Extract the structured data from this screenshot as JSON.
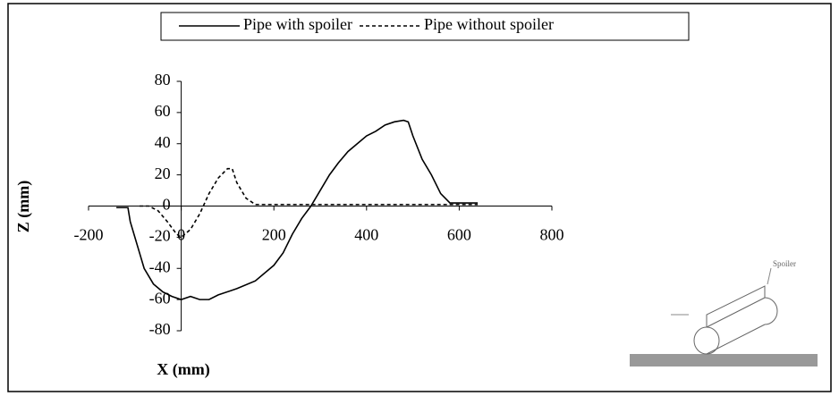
{
  "chart_data": {
    "type": "line",
    "xlabel": "X (mm)",
    "ylabel": "Z (mm)",
    "xlim": [
      -200,
      800
    ],
    "xticks": [
      -200,
      0,
      200,
      400,
      600,
      800
    ],
    "ylim": [
      -80,
      80
    ],
    "yticks": [
      -80,
      -60,
      -40,
      -20,
      0,
      20,
      40,
      60,
      80
    ],
    "legend": "top",
    "annotations": [
      "Spoiler"
    ],
    "series": [
      {
        "name": "Pipe with spoiler",
        "color": "#000000",
        "dash": "solid",
        "x": [
          -140,
          -115,
          -110,
          -100,
          -90,
          -80,
          -60,
          -40,
          -20,
          0,
          20,
          40,
          60,
          80,
          120,
          160,
          200,
          220,
          240,
          260,
          280,
          300,
          320,
          340,
          360,
          380,
          400,
          420,
          440,
          460,
          480,
          490,
          500,
          520,
          540,
          560,
          580,
          600,
          620,
          640
        ],
        "values": [
          -1,
          -1,
          -10,
          -20,
          -30,
          -40,
          -50,
          -55,
          -58,
          -60,
          -58,
          -60,
          -60,
          -57,
          -53,
          -48,
          -38,
          -30,
          -18,
          -8,
          0,
          10,
          20,
          28,
          35,
          40,
          45,
          48,
          52,
          54,
          55,
          54,
          45,
          30,
          20,
          8,
          2,
          2,
          2,
          2
        ]
      },
      {
        "name": "Pipe without spoiler",
        "color": "#000000",
        "dash": "dashed",
        "x": [
          -90,
          -70,
          -50,
          -30,
          -10,
          0,
          20,
          40,
          60,
          80,
          100,
          110,
          120,
          140,
          160,
          200,
          300,
          400,
          500,
          600,
          640
        ],
        "values": [
          0,
          0,
          -3,
          -10,
          -18,
          -20,
          -15,
          -5,
          8,
          18,
          24,
          24,
          15,
          5,
          1,
          1,
          1,
          1,
          1,
          1,
          1
        ]
      }
    ]
  }
}
